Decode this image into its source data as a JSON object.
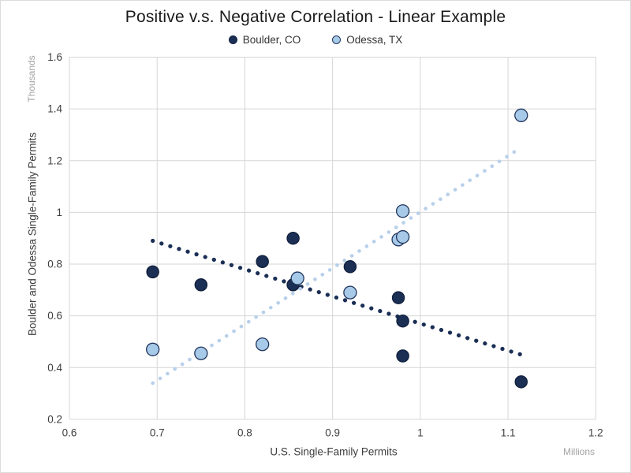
{
  "chart": {
    "title": "Positive v.s. Negative Correlation - Linear Example"
  },
  "colors": {
    "boulder_navy": "#1b2f55",
    "boulder_edge": "#101f3c",
    "odessa_fill": "#a8cae9",
    "odessa_edge": "#20355c",
    "odessa_trend": "#b7d0ea",
    "gridline": "#d6d6d6",
    "tick_text": "#3f3f3f"
  },
  "chart_data": {
    "type": "scatter",
    "title": "Positive v.s. Negative Correlation - Linear Example",
    "xlabel": "U.S. Single-Family Permits",
    "x_unit": "Millions",
    "ylabel": "Boulder and Odessa Single-Family Permits",
    "y_unit": "Thousands",
    "xlim": [
      0.6,
      1.2
    ],
    "ylim": [
      0.2,
      1.6
    ],
    "x_ticks": [
      0.6,
      0.7,
      0.8,
      0.9,
      1,
      1.1,
      1.2
    ],
    "y_ticks": [
      0.2,
      0.4,
      0.6,
      0.8,
      1,
      1.2,
      1.4,
      1.6
    ],
    "grid": true,
    "legend_position": "top-center",
    "series": [
      {
        "name": "Boulder, CO",
        "marker_color": "#1b2f55",
        "marker_edge": "#101f3c",
        "points": [
          [
            0.695,
            0.77
          ],
          [
            0.75,
            0.72
          ],
          [
            0.82,
            0.81
          ],
          [
            0.855,
            0.9
          ],
          [
            0.855,
            0.72
          ],
          [
            0.92,
            0.79
          ],
          [
            0.975,
            0.67
          ],
          [
            0.98,
            0.58
          ],
          [
            0.98,
            0.445
          ],
          [
            1.115,
            0.345
          ]
        ],
        "trendline": {
          "style": "dotted",
          "color": "#1b2f55",
          "from": [
            0.695,
            0.89
          ],
          "to": [
            1.115,
            0.45
          ]
        }
      },
      {
        "name": "Odessa, TX",
        "marker_color": "#a8cae9",
        "marker_edge": "#20355c",
        "points": [
          [
            0.695,
            0.47
          ],
          [
            0.75,
            0.455
          ],
          [
            0.82,
            0.49
          ],
          [
            0.86,
            0.745
          ],
          [
            0.92,
            0.69
          ],
          [
            0.975,
            0.895
          ],
          [
            0.98,
            0.905
          ],
          [
            0.98,
            1.005
          ],
          [
            1.115,
            1.375
          ]
        ],
        "trendline": {
          "style": "dotted",
          "color": "#b7d0ea",
          "from": [
            0.695,
            0.34
          ],
          "to": [
            1.11,
            1.24
          ]
        }
      }
    ]
  }
}
